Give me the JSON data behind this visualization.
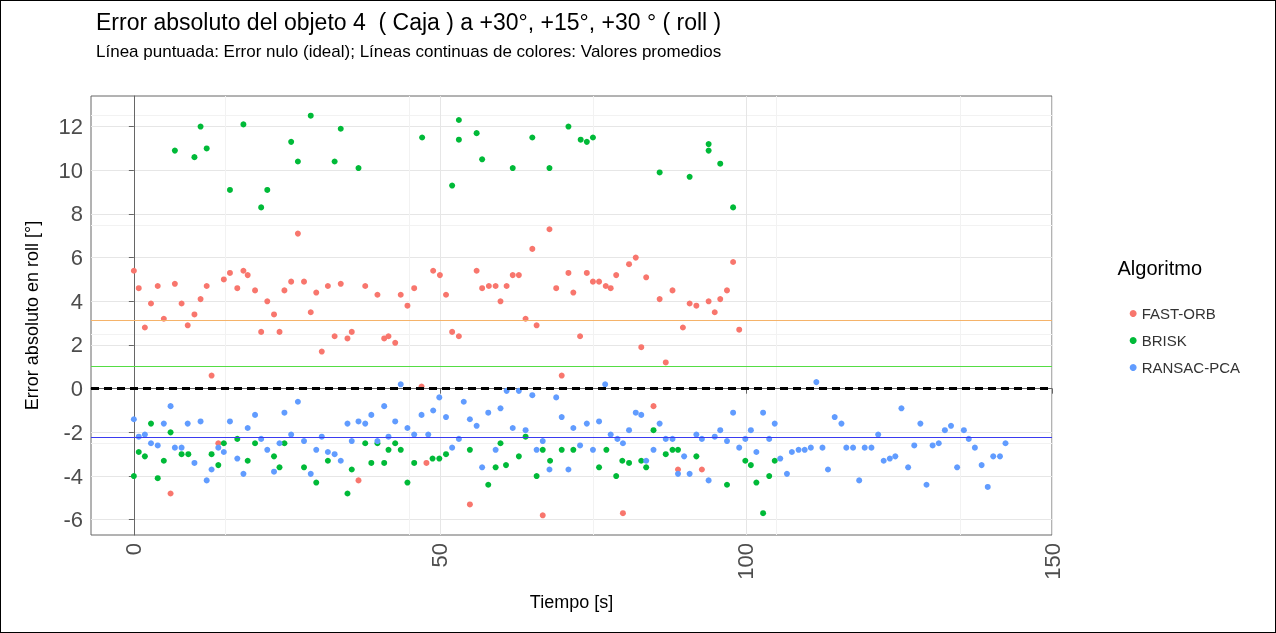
{
  "chart_data": {
    "type": "scatter",
    "title": "Error absoluto del objeto 4  ( Caja ) a +30°, +15°, +30 ° ( roll )",
    "subtitle": "Línea puntuada: Error nulo (ideal); Líneas continuas de colores: Valores promedios",
    "xlabel": "Tiempo [s]",
    "ylabel": "Error absoluto en roll [°]",
    "legend_title": "Algoritmo",
    "legend": "right",
    "grid": true,
    "marker": "circle",
    "xlim": [
      -7,
      150
    ],
    "xticks": [
      0,
      50,
      100,
      150
    ],
    "ylim": [
      -6.7,
      13.4
    ],
    "yticks": [
      -6,
      -4,
      -2,
      0,
      2,
      4,
      6,
      8,
      10,
      12
    ],
    "series": [
      {
        "name": "FAST-ORB",
        "color": "#f8766d",
        "x": [
          0,
          0.8,
          1.8,
          2.8,
          3.9,
          4.9,
          6,
          6.7,
          7.8,
          8.8,
          9.9,
          10.9,
          11.9,
          12.7,
          13.8,
          14.7,
          15.7,
          16.9,
          17.9,
          18.6,
          19.8,
          20.8,
          21.8,
          22.9,
          23.8,
          24.6,
          25.7,
          26.8,
          27.8,
          28.9,
          29.8,
          30.7,
          31.7,
          32.8,
          33.8,
          34.9,
          35.6,
          36.7,
          37.8,
          39.8,
          40.9,
          41.6,
          42.7,
          43.6,
          44.7,
          45.8,
          47,
          47.8,
          48.9,
          50,
          51,
          52,
          53.1,
          54.9,
          56,
          56.9,
          58,
          59.1,
          59.9,
          60.9,
          61.9,
          62.9,
          64,
          65.1,
          65.8,
          66.8,
          67.9,
          69,
          69.9,
          71,
          71.8,
          72.9,
          74,
          75,
          76,
          77.1,
          77.9,
          78.8,
          79.9,
          80.9,
          82,
          82.9,
          83.7,
          84.9,
          85.9,
          86.9,
          88,
          88.9,
          89.7,
          90.8,
          91.9,
          92.8,
          93.9,
          94.9,
          95.8,
          96.9,
          97.9,
          98.9
        ],
        "values": [
          5.4,
          4.6,
          2.8,
          3.9,
          4.7,
          3.2,
          -4.8,
          4.8,
          3.9,
          2.9,
          3.4,
          4.1,
          4.7,
          0.6,
          -2.5,
          5,
          5.3,
          4.6,
          5.4,
          5.2,
          4.5,
          2.6,
          4,
          3.4,
          2.6,
          4.5,
          4.9,
          7.1,
          4.9,
          3.5,
          4.4,
          1.7,
          4.7,
          2.4,
          4.8,
          2.3,
          2.6,
          -4.2,
          4.7,
          4.3,
          2.3,
          2.4,
          2.1,
          4.3,
          3.8,
          4.6,
          0.1,
          -3.4,
          5.4,
          5.2,
          4.3,
          2.6,
          2.4,
          -5.3,
          5.4,
          4.6,
          4.7,
          4.7,
          4,
          4.7,
          5.2,
          5.2,
          3.2,
          6.4,
          2.9,
          -5.8,
          7.3,
          4.6,
          0.6,
          5.3,
          4.4,
          2.4,
          5.3,
          4.9,
          4.9,
          4.7,
          4.6,
          5.2,
          -5.7,
          5.7,
          6,
          1.9,
          5.1,
          -0.8,
          4.1,
          1.2,
          4.5,
          -3.7,
          2.8,
          3.9,
          3.8,
          -3.7,
          4,
          3.5,
          4.1,
          4.5,
          5.8,
          2.7
        ]
      },
      {
        "name": "BRISK",
        "color": "#00ba38",
        "x": [
          0,
          0.8,
          1.8,
          2.8,
          3.9,
          4.9,
          6,
          6.7,
          7.8,
          8.9,
          9.9,
          10.9,
          11.9,
          12.7,
          13.8,
          14.7,
          15.7,
          16.9,
          17.9,
          18.6,
          19.8,
          20.8,
          21.8,
          22.9,
          23.8,
          24.6,
          25.7,
          26.8,
          27.8,
          28.9,
          29.8,
          31.7,
          32.8,
          33.8,
          34.9,
          35.6,
          36.7,
          37.8,
          38.8,
          39.8,
          40.9,
          41.6,
          42.7,
          43.6,
          44.7,
          45.8,
          47.1,
          48.8,
          49.9,
          51,
          52,
          53.1,
          53.1,
          54.9,
          56,
          56.9,
          57.9,
          59.1,
          59.9,
          60.8,
          61.9,
          62.9,
          64,
          65.1,
          65.8,
          66.8,
          67.9,
          68,
          69.9,
          71,
          71.8,
          73,
          74,
          75,
          76,
          77.2,
          78.8,
          79.8,
          80.9,
          82.9,
          83.7,
          84.9,
          85.9,
          86.9,
          88,
          88.9,
          90.8,
          91.9,
          93.9,
          93.9,
          95.8,
          96.9,
          97.9,
          99.9,
          100.8,
          101.7,
          102.8,
          103.8,
          104.7
        ],
        "values": [
          -4,
          -2.9,
          -3.1,
          -1.6,
          -4.1,
          -3.3,
          -2,
          10.9,
          -3,
          -3,
          10.6,
          12,
          11,
          -3,
          -3.5,
          -2.5,
          9.1,
          -2.3,
          12.1,
          -3.3,
          -2.5,
          8.3,
          9.1,
          -3.1,
          -3.6,
          -2.5,
          11.3,
          10.4,
          -3.6,
          12.5,
          -4.3,
          -3.3,
          10.4,
          11.9,
          -4.8,
          -3.7,
          10.1,
          -2.5,
          -3.4,
          -2.5,
          -3.4,
          -2.8,
          -2.5,
          -2.8,
          -4.3,
          -3.4,
          11.5,
          -3.2,
          -3.2,
          -3,
          9.3,
          12.3,
          11.4,
          -2.8,
          11.7,
          10.5,
          -4.4,
          -3.6,
          -2.5,
          -3.5,
          10.1,
          -3.1,
          -2.2,
          11.5,
          -4,
          -2.8,
          10.1,
          -3.3,
          -2.8,
          12,
          -2.8,
          11.4,
          11.3,
          11.5,
          -3.6,
          -2.8,
          -4,
          -3.3,
          -3.4,
          -3.3,
          -3.6,
          -1.9,
          9.9,
          -3,
          -2.8,
          -2.8,
          9.7,
          -3.1,
          11.2,
          10.9,
          10.3,
          -4.4,
          8.3,
          -3.3,
          -3.5,
          -4.3,
          -5.7,
          -4,
          -3.3
        ]
      },
      {
        "name": "RANSAC-PCA",
        "color": "#619cff",
        "x": [
          0,
          0.8,
          1.8,
          2.8,
          3.9,
          4.9,
          6,
          6.7,
          7.8,
          8.8,
          9.9,
          10.9,
          11.9,
          12.7,
          13.8,
          14.7,
          15.7,
          16.9,
          17.9,
          18.6,
          19.8,
          20.8,
          21.8,
          22.9,
          23.8,
          24.6,
          25.7,
          26.8,
          27.8,
          28.9,
          29.8,
          30.7,
          31.7,
          32.8,
          33.8,
          34.9,
          35.6,
          36.7,
          37.8,
          38.8,
          39.8,
          40.9,
          41.6,
          42.7,
          43.6,
          44.7,
          45.8,
          47,
          48.1,
          48.9,
          49.9,
          51,
          52,
          53.1,
          53.9,
          54.9,
          56,
          56.9,
          57.9,
          59.1,
          59.9,
          60.9,
          61.9,
          62.9,
          64,
          65.1,
          65.8,
          66.8,
          67.9,
          69,
          69.9,
          71,
          71.8,
          72.9,
          74,
          75,
          76,
          77,
          77.9,
          79,
          79.9,
          80.9,
          82,
          82.9,
          83.7,
          84.9,
          85.9,
          86.9,
          88,
          88.9,
          89.9,
          90.8,
          91.9,
          92.8,
          93.9,
          94.9,
          95.8,
          96.9,
          97.9,
          98.9,
          99.9,
          100.8,
          101.7,
          102.8,
          103.8,
          104.7,
          105.6,
          106.7,
          107.5,
          108.6,
          109.6,
          110.6,
          111.5,
          112.5,
          113.4,
          114.5,
          115.6,
          116.4,
          117.5,
          118.5,
          119.4,
          120.5,
          121.6,
          122.5,
          123.5,
          124.4,
          125.4,
          126.5,
          127.5,
          128.5,
          129.5,
          130.5,
          131.5,
          132.5,
          133.5,
          134.5,
          135.6,
          136.4,
          137.4,
          138.5,
          139.5,
          140.4,
          141.5,
          142.4
        ],
        "values": [
          -1.4,
          -2.2,
          -2.1,
          -2.5,
          -2.6,
          -1.6,
          -0.8,
          -2.7,
          -2.7,
          -1.6,
          -3.4,
          -1.5,
          -4.2,
          -3.7,
          -2.7,
          -2.9,
          -1.5,
          -3.2,
          -3.9,
          -1.8,
          -1.2,
          -2.3,
          -2.8,
          -3.8,
          -2.5,
          -1.1,
          -2.1,
          -0.6,
          -2.4,
          -3.9,
          -2.8,
          -2.2,
          -2.9,
          -3,
          -3.3,
          -1.6,
          -2.4,
          -1.5,
          -1.6,
          -1.2,
          -2.4,
          -0.8,
          -2.2,
          -1.5,
          0.2,
          -1.8,
          -2.1,
          -1.2,
          -2.1,
          -1,
          -0.4,
          -1.3,
          -2.7,
          -2.3,
          -0.6,
          -1.4,
          -1.7,
          -3.6,
          -1.1,
          -2.8,
          -0.9,
          -0.1,
          -1.8,
          -0.1,
          -1.9,
          -0.3,
          -2.8,
          -2.4,
          -3.7,
          -0.4,
          -1.3,
          -3.7,
          -1.8,
          -2.6,
          -1.6,
          -2.8,
          -1.5,
          0.2,
          -2.1,
          -2.3,
          -2.5,
          -1.9,
          -1.1,
          -1.2,
          -3.3,
          -2.8,
          -1.6,
          -2.3,
          -2.3,
          -3.9,
          -3.1,
          -3.9,
          -2.1,
          -2.3,
          -4.2,
          -2.2,
          -1.9,
          -2.4,
          -1.1,
          -2.7,
          -2.3,
          -1.9,
          -2.9,
          -1.1,
          -2.3,
          -1.6,
          -3.2,
          -3.9,
          -2.9,
          -2.8,
          -2.8,
          -2.7,
          0.3,
          -2.7,
          -3.7,
          -1.3,
          -1.6,
          -2.7,
          -2.7,
          -4.2,
          -2.7,
          -2.7,
          -2.1,
          -3.3,
          -3.2,
          -3.1,
          -0.9,
          -3.6,
          -2.6,
          -1.6,
          -4.4,
          -2.6,
          -2.5,
          -1.9,
          -1.7,
          -3.6,
          -1.9,
          -2.3,
          -2.7,
          -3.5,
          -4.5,
          -3.1,
          -3.1,
          -2.5
        ]
      }
    ],
    "ref_lines": [
      {
        "axis": "y",
        "value": 0,
        "color": "#000000",
        "line_style": "dashed"
      },
      {
        "axis": "y",
        "value": 3.11,
        "color": "#f5b36a"
      },
      {
        "axis": "y",
        "value": 1.04,
        "color": "#55dd44"
      },
      {
        "axis": "y",
        "value": -2.21,
        "color": "#3b3bf0"
      }
    ]
  }
}
